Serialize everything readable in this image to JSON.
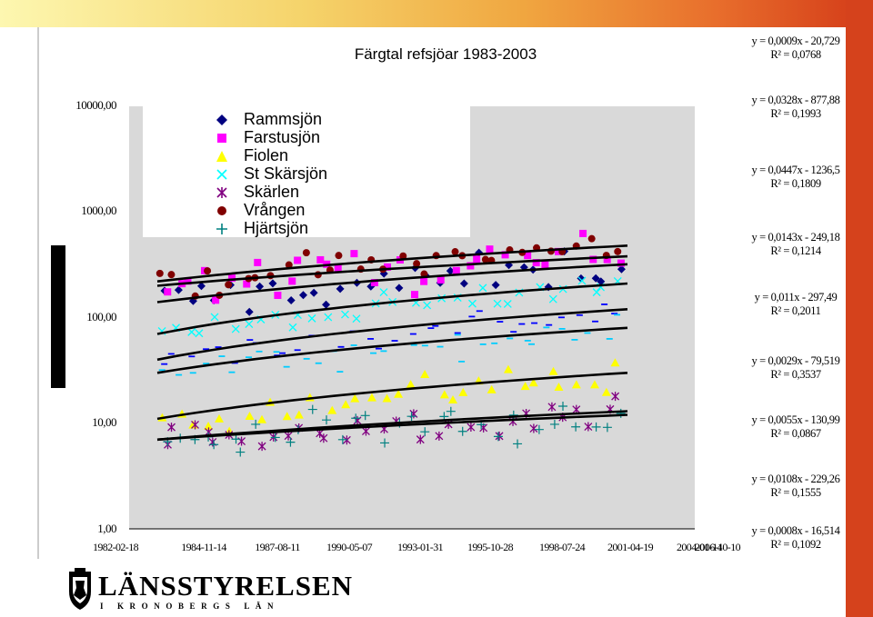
{
  "slide_title": "Färgtal refsjöar 1983-2003",
  "organization": {
    "name": "LÄNSSTYRELSEN",
    "subtitle": "I KRONOBERGS LÄN"
  },
  "colors": {
    "background_gradient": [
      "#fdf7b0",
      "#f5d36a",
      "#f0a640",
      "#e86e2c",
      "#d33a18"
    ],
    "plot_area": "#d9d9d9",
    "trend_line": "#000000"
  },
  "chart_data": {
    "type": "scatter",
    "title": "",
    "xlabel": "",
    "ylabel": "",
    "y_scale": "log",
    "ylim": [
      1,
      10000
    ],
    "xlim": [
      "1982-02-18",
      "2006-10-10"
    ],
    "y_tick_labels": [
      "10000,00",
      "1000,00",
      "100,00",
      "10,00",
      "1,00"
    ],
    "x_tick_labels": [
      "1982-02-18",
      "1984-11-14",
      "1987-08-11",
      "1990-05-07",
      "1993-01-31",
      "1995-10-28",
      "1998-07-24",
      "2001-04-19",
      "2004-01-14",
      "2006-10-10"
    ],
    "grid": false,
    "legend_position": "top-left (inside plot)",
    "series": [
      {
        "name": "Rammsjön",
        "marker": "diamond",
        "color": "#000080",
        "trend": {
          "start": 140,
          "end": 320
        },
        "spread": 0.55
      },
      {
        "name": "Farstusjön",
        "marker": "square",
        "color": "#ff00ff",
        "trend": {
          "start": 200,
          "end": 380
        },
        "spread": 0.6
      },
      {
        "name": "Fiolen",
        "marker": "triangle",
        "color": "#ffff00",
        "trend": {
          "start": 11,
          "end": 30
        },
        "spread": 0.45
      },
      {
        "name": "St Skärsjön",
        "marker": "x",
        "color": "#00ffff",
        "trend": {
          "start": 70,
          "end": 210
        },
        "spread": 0.4
      },
      {
        "name": "Skärlen",
        "marker": "asterisk",
        "color": "#800080",
        "trend": {
          "start": 7,
          "end": 13
        },
        "spread": 0.4
      },
      {
        "name": "Vrången",
        "marker": "circle",
        "color": "#800000",
        "trend": {
          "start": 220,
          "end": 480
        },
        "spread": 0.45
      },
      {
        "name": "Hjärtsjön",
        "marker": "plus",
        "color": "#008080",
        "trend": {
          "start": 7,
          "end": 12
        },
        "spread": 0.55
      },
      {
        "name": "",
        "marker": "dash",
        "color": "#0000ff",
        "trend": {
          "start": 40,
          "end": 120
        },
        "spread": 0.45
      },
      {
        "name": "",
        "marker": "dash",
        "color": "#00ccff",
        "trend": {
          "start": 30,
          "end": 80
        },
        "spread": 0.45
      }
    ],
    "trendline_equations": [
      {
        "eq": "y = 0,0009x - 20,729",
        "r2": "R² = 0,0768"
      },
      {
        "eq": "y = 0,0328x - 877,88",
        "r2": "R² = 0,1993"
      },
      {
        "eq": "y = 0,0447x - 1236,5",
        "r2": "R² = 0,1809"
      },
      {
        "eq": "y = 0,0143x - 249,18",
        "r2": "R² = 0,1214"
      },
      {
        "eq": "y = 0,011x - 297,49",
        "r2": "R² = 0,2011"
      },
      {
        "eq": "y = 0,0029x - 79,519",
        "r2": "R² = 0,3537"
      },
      {
        "eq": "y = 0,0055x - 130,99",
        "r2": "R² = 0,0867"
      },
      {
        "eq": "y = 0,0108x - 229,26",
        "r2": "R² = 0,1555"
      },
      {
        "eq": "y = 0,0008x - 16,514",
        "r2": "R² = 0,1092"
      }
    ]
  }
}
